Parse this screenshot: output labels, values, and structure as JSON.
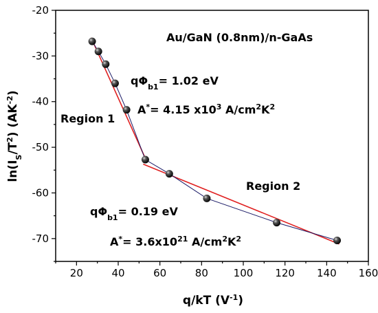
{
  "chart_data": {
    "type": "scatter",
    "title": "Au/GaN (0.8nm)/n-GaAs",
    "xlabel": "q/kT (V",
    "xlabel_sup": "-1",
    "xlabel_tail": ")",
    "ylabel": "ln(I",
    "ylabel_sub": "S",
    "ylabel_mid": "/T",
    "ylabel_sup": "2",
    "ylabel_tail": ") (AK",
    "ylabel_sup2": "-2",
    "ylabel_end": ")",
    "xlim": [
      10,
      160
    ],
    "ylim": [
      -75,
      -20
    ],
    "xticks": [
      20,
      40,
      60,
      80,
      100,
      120,
      140,
      160
    ],
    "yticks": [
      -20,
      -30,
      -40,
      -50,
      -60,
      -70
    ],
    "grid": false,
    "series": [
      {
        "x": [
          27.5,
          30.5,
          34,
          38.5,
          44,
          53,
          64.5,
          82.5,
          116,
          145
        ],
        "y": [
          -26.8,
          -29,
          -31.8,
          -36,
          -41.8,
          -52.7,
          -55.8,
          -61.2,
          -66.5,
          -70.4
        ],
        "marker_color": "#111111",
        "line_color": "#1a1a66"
      }
    ],
    "fit_lines": [
      {
        "x": [
          27,
          53
        ],
        "y": [
          -26,
          -52.4
        ],
        "color": "#e02020"
      },
      {
        "x": [
          52,
          146
        ],
        "y": [
          -53.7,
          -71.2
        ],
        "color": "#e02020"
      }
    ],
    "annotations": {
      "region1": "Region 1",
      "region2": "Region 2",
      "r1_barrier_prefix": "qΦ",
      "r1_barrier_sub": "b1",
      "r1_barrier_value": "= 1.02 eV",
      "r1_astar_prefix": "A",
      "r1_astar_star": "*",
      "r1_astar_value": "=  4.15 x10",
      "r1_astar_exp": "3",
      "r1_astar_unit": " A/cm",
      "r1_astar_unit_sup1": "2",
      "r1_astar_unit2": "K",
      "r1_astar_unit_sup2": "2",
      "r2_barrier_prefix": "qΦ",
      "r2_barrier_sub": "b1",
      "r2_barrier_value": "= 0.19 eV",
      "r2_astar_prefix": "A",
      "r2_astar_star": "*",
      "r2_astar_value": "=  3.6x10",
      "r2_astar_exp": "21",
      "r2_astar_unit": " A/cm",
      "r2_astar_unit_sup1": "2",
      "r2_astar_unit2": "K",
      "r2_astar_unit_sup2": "2"
    }
  }
}
